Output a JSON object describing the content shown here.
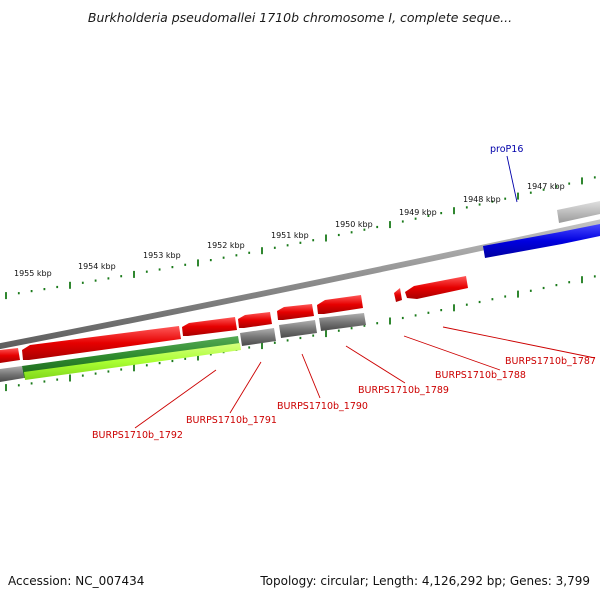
{
  "header": {
    "title": "Burkholderia pseudomallei 1710b chromosome I, complete seque..."
  },
  "footer": {
    "accession": "Accession: NC_007434",
    "summary": "Topology: circular; Length: 4,126,292 bp; Genes: 3,799"
  },
  "colors": {
    "backbone": "#8a8a8a",
    "tick_green": "#1a7a1a",
    "forward_feature": "#0000e0",
    "gene_red": "#e60000",
    "cds_gray": "#707070",
    "green_band": "#2d8a2d",
    "lime_band": "#aaff33",
    "label_red": "#cc0000",
    "label_blue": "#0000aa"
  },
  "ruler": {
    "ticks": [
      {
        "label": "1947 kbp"
      },
      {
        "label": "1948 kbp"
      },
      {
        "label": "1949 kbp"
      },
      {
        "label": "1950 kbp"
      },
      {
        "label": "1951 kbp"
      },
      {
        "label": "1952 kbp"
      },
      {
        "label": "1953 kbp"
      },
      {
        "label": "1954 kbp"
      },
      {
        "label": "1955 kbp"
      }
    ]
  },
  "features": {
    "promoter": {
      "label": "proP16"
    },
    "genes": [
      {
        "label": "BURPS1710b_1787"
      },
      {
        "label": "BURPS1710b_1788"
      },
      {
        "label": "BURPS1710b_1789"
      },
      {
        "label": "BURPS1710b_1790"
      },
      {
        "label": "BURPS1710b_1791"
      },
      {
        "label": "BURPS1710b_1792"
      }
    ]
  }
}
